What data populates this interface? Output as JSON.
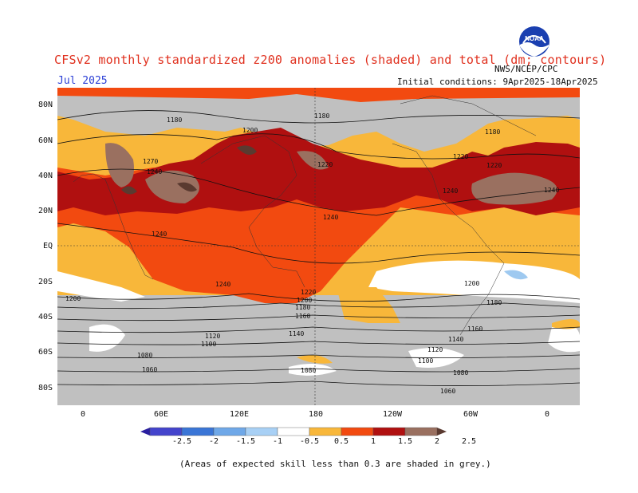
{
  "header": {
    "title": "CFSv2 monthly standardized z200 anomalies (shaded) and total (dm; contours)",
    "month": "Jul 2025",
    "initial_conditions": "Initial conditions: 9Apr2025-18Apr2025",
    "agency": "NWS/NCEP/CPC",
    "logo_text": "NOAA"
  },
  "map": {
    "lat_labels": [
      "80N",
      "60N",
      "40N",
      "20N",
      "EQ",
      "20S",
      "40S",
      "60S",
      "80S"
    ],
    "lon_labels": [
      "0",
      "60E",
      "120E",
      "180",
      "120W",
      "60W",
      "0"
    ],
    "contour_labels": [
      "1180",
      "1180",
      "1180",
      "1200",
      "1220",
      "1220",
      "1220",
      "1240",
      "1240",
      "1240",
      "1240",
      "1270",
      "1240",
      "1240",
      "1220",
      "1200",
      "1200",
      "1180",
      "1160",
      "1140",
      "1120",
      "1100",
      "1080",
      "1060",
      "1200",
      "1180",
      "1160",
      "1140",
      "1120",
      "1100",
      "1080",
      "1060",
      "1080"
    ],
    "colors": {
      "ocean_land_low_skill": "#c0c0c0",
      "pos_0_5_1": "#f8b73a",
      "pos_1_1_5": "#f24a10",
      "pos_1_5_2": "#b01010",
      "pos_2_2_5": "#9a7060",
      "pos_gt_2_5": "#5a3a30",
      "neg_0_5_1": "#9ec9f0",
      "white_neutral": "#ffffff"
    }
  },
  "colorbar": {
    "labels": [
      "-2.5",
      "-2",
      "-1.5",
      "-1",
      "-0.5",
      "0.5",
      "1",
      "1.5",
      "2",
      "2.5"
    ],
    "colors": [
      "#2a1fa0",
      "#4444cc",
      "#3a75d6",
      "#6fa8e8",
      "#a8d0f5",
      "#ffffff",
      "#f8b73a",
      "#f24a10",
      "#b01010",
      "#9a7060",
      "#5a3a30"
    ]
  },
  "caption": "(Areas of expected skill less than 0.3 are shaded in grey.)"
}
